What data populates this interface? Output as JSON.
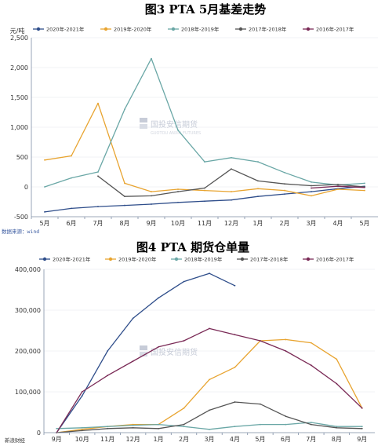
{
  "page": {
    "source_text": "数据来源：wind",
    "watermark_text": "国投安信期货",
    "corner_text": "新浪财经"
  },
  "colors": {
    "2020-2021": "#2e4d8a",
    "2019-2020": "#e8a430",
    "2018-2019": "#6aa7a6",
    "2017-2018": "#555555",
    "2016-2017": "#7a2a56"
  },
  "chart_data": [
    {
      "type": "line",
      "title": "图3 PTA 5月基差走势",
      "ylabel": "元/吨",
      "ylim": [
        -500,
        2500
      ],
      "yticks": [
        "2,500",
        "2,000",
        "1,500",
        "1,000",
        "500",
        "0",
        "-500"
      ],
      "x": [
        "5月",
        "6月",
        "7月",
        "8月",
        "9月",
        "10月",
        "11月",
        "12月",
        "1月",
        "2月",
        "3月",
        "4月",
        "5月"
      ],
      "legend_position": "top",
      "series": [
        {
          "name": "2020年-2021年",
          "color": "#2e4d8a",
          "values": [
            -420,
            -360,
            -330,
            -310,
            -290,
            -260,
            -240,
            -220,
            -160,
            -120,
            -80,
            -30,
            10
          ]
        },
        {
          "name": "2019年-2020年",
          "color": "#e8a430",
          "values": [
            450,
            520,
            1400,
            60,
            -80,
            -40,
            -60,
            -80,
            -30,
            -60,
            -150,
            -40,
            -60
          ]
        },
        {
          "name": "2018年-2019年",
          "color": "#6aa7a6",
          "values": [
            0,
            150,
            250,
            1300,
            2150,
            950,
            420,
            490,
            420,
            240,
            80,
            30,
            60
          ]
        },
        {
          "name": "2017年-2018年",
          "color": "#555555",
          "values": [
            null,
            null,
            180,
            -160,
            -150,
            -80,
            -20,
            300,
            100,
            50,
            20,
            40,
            0
          ]
        },
        {
          "name": "2016年-2017年",
          "color": "#7a2a56",
          "values": [
            null,
            null,
            null,
            null,
            null,
            null,
            null,
            null,
            null,
            null,
            -20,
            10,
            -10
          ]
        }
      ]
    },
    {
      "type": "line",
      "title": "图4 PTA 期货仓单量",
      "ylim": [
        0,
        400000
      ],
      "yticks": [
        "400,000",
        "300,000",
        "200,000",
        "100,000",
        "0"
      ],
      "x": [
        "9月",
        "10月",
        "11月",
        "12月",
        "1月",
        "2月",
        "3月",
        "4月",
        "5月",
        "6月",
        "7月",
        "8月",
        "9月"
      ],
      "legend_position": "top",
      "series": [
        {
          "name": "2020年-2021年",
          "color": "#2e4d8a",
          "values": [
            0,
            90000,
            200000,
            280000,
            330000,
            370000,
            390000,
            360000,
            null,
            null,
            null,
            null,
            null
          ]
        },
        {
          "name": "2019年-2020年",
          "color": "#e8a430",
          "values": [
            0,
            8000,
            15000,
            20000,
            20000,
            60000,
            130000,
            160000,
            225000,
            228000,
            220000,
            180000,
            60000
          ]
        },
        {
          "name": "2018年-2019年",
          "color": "#6aa7a6",
          "values": [
            10000,
            12000,
            15000,
            18000,
            20000,
            15000,
            8000,
            15000,
            20000,
            20000,
            25000,
            15000,
            15000
          ]
        },
        {
          "name": "2017年-2018年",
          "color": "#555555",
          "values": [
            0,
            5000,
            10000,
            12000,
            10000,
            20000,
            55000,
            75000,
            70000,
            40000,
            20000,
            12000,
            10000
          ]
        },
        {
          "name": "2016年-2017年",
          "color": "#7a2a56",
          "values": [
            0,
            100000,
            140000,
            175000,
            210000,
            225000,
            255000,
            240000,
            225000,
            200000,
            165000,
            120000,
            60000
          ]
        }
      ]
    }
  ]
}
